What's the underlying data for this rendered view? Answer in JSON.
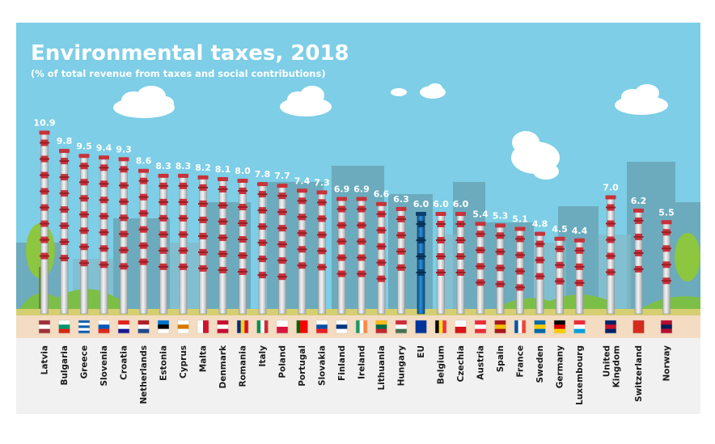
{
  "chart_data": {
    "type": "bar",
    "title": "Environmental taxes, 2018",
    "subtitle": "(% of total revenue from taxes and social contributions)",
    "ylim": [
      0,
      11
    ],
    "highlight": "EU",
    "categories": [
      {
        "label": [
          "Latvia"
        ],
        "value": "10.9"
      },
      {
        "label": [
          "Bulgaria"
        ],
        "value": "9.8"
      },
      {
        "label": [
          "Greece"
        ],
        "value": "9.5"
      },
      {
        "label": [
          "Slovenia"
        ],
        "value": "9.4"
      },
      {
        "label": [
          "Croatia"
        ],
        "value": "9.3"
      },
      {
        "label": [
          "Netherlands"
        ],
        "value": "8.6"
      },
      {
        "label": [
          "Estonia"
        ],
        "value": "8.3"
      },
      {
        "label": [
          "Cyprus"
        ],
        "value": "8.3"
      },
      {
        "label": [
          "Malta"
        ],
        "value": "8.2"
      },
      {
        "label": [
          "Denmark"
        ],
        "value": "8.1"
      },
      {
        "label": [
          "Romania"
        ],
        "value": "8.0"
      },
      {
        "label": [
          "Italy"
        ],
        "value": "7.8"
      },
      {
        "label": [
          "Poland"
        ],
        "value": "7.7"
      },
      {
        "label": [
          "Portugal"
        ],
        "value": "7.4"
      },
      {
        "label": [
          "Slovakia"
        ],
        "value": "7.3"
      },
      {
        "label": [
          "Finland"
        ],
        "value": "6.9"
      },
      {
        "label": [
          "Ireland"
        ],
        "value": "6.9"
      },
      {
        "label": [
          "Lithuania"
        ],
        "value": "6.6"
      },
      {
        "label": [
          "Hungary"
        ],
        "value": "6.3"
      },
      {
        "label": [
          "EU"
        ],
        "value": "6.0"
      },
      {
        "label": [
          "Belgium"
        ],
        "value": "6.0"
      },
      {
        "label": [
          "Czechia"
        ],
        "value": "6.0"
      },
      {
        "label": [
          "Austria"
        ],
        "value": "5.4"
      },
      {
        "label": [
          "Spain"
        ],
        "value": "5.3"
      },
      {
        "label": [
          "France"
        ],
        "value": "5.1"
      },
      {
        "label": [
          "Sweden"
        ],
        "value": "4.8"
      },
      {
        "label": [
          "Germany"
        ],
        "value": "4.5"
      },
      {
        "label": [
          "Luxembourg"
        ],
        "value": "4.4"
      },
      {
        "label": [
          "United",
          "Kingdom"
        ],
        "value": "7.0"
      },
      {
        "label": [
          "Switzerland"
        ],
        "value": "6.2"
      },
      {
        "label": [
          "Norway"
        ],
        "value": "5.5"
      }
    ]
  },
  "flags": [
    {
      "type": "h",
      "colors": [
        "#9e3039",
        "#ffffff",
        "#9e3039"
      ]
    },
    {
      "type": "h",
      "colors": [
        "#ffffff",
        "#00966e",
        "#d62612"
      ]
    },
    {
      "type": "h",
      "colors": [
        "#0d5eaf",
        "#ffffff",
        "#0d5eaf",
        "#ffffff",
        "#0d5eaf"
      ]
    },
    {
      "type": "h",
      "colors": [
        "#ffffff",
        "#0057b8",
        "#e2231a"
      ]
    },
    {
      "type": "h",
      "colors": [
        "#e2231a",
        "#ffffff",
        "#171796"
      ]
    },
    {
      "type": "h",
      "colors": [
        "#ae1c28",
        "#ffffff",
        "#21468b"
      ]
    },
    {
      "type": "h",
      "colors": [
        "#0072ce",
        "#000000",
        "#ffffff"
      ]
    },
    {
      "type": "h",
      "colors": [
        "#ffffff",
        "#d57800",
        "#ffffff"
      ]
    },
    {
      "type": "v",
      "colors": [
        "#ffffff",
        "#cf142b"
      ]
    },
    {
      "type": "h",
      "colors": [
        "#c60c30",
        "#ffffff",
        "#c60c30"
      ]
    },
    {
      "type": "v",
      "colors": [
        "#002b7f",
        "#fcd116",
        "#ce1126"
      ]
    },
    {
      "type": "v",
      "colors": [
        "#009246",
        "#ffffff",
        "#ce2b37"
      ]
    },
    {
      "type": "h",
      "colors": [
        "#ffffff",
        "#dc143c"
      ]
    },
    {
      "type": "v",
      "colors": [
        "#006600",
        "#ff0000",
        "#ff0000"
      ]
    },
    {
      "type": "h",
      "colors": [
        "#ffffff",
        "#0b4ea2",
        "#ee1c25"
      ]
    },
    {
      "type": "h",
      "colors": [
        "#ffffff",
        "#003580",
        "#ffffff"
      ]
    },
    {
      "type": "v",
      "colors": [
        "#169b62",
        "#ffffff",
        "#ff883e"
      ]
    },
    {
      "type": "h",
      "colors": [
        "#fdb913",
        "#006a44",
        "#c1272d"
      ]
    },
    {
      "type": "h",
      "colors": [
        "#ce2939",
        "#ffffff",
        "#477050"
      ]
    },
    {
      "type": "h",
      "colors": [
        "#003399"
      ]
    },
    {
      "type": "v",
      "colors": [
        "#000000",
        "#fdda24",
        "#ef3340"
      ]
    },
    {
      "type": "h",
      "colors": [
        "#ffffff",
        "#d7141a"
      ]
    },
    {
      "type": "h",
      "colors": [
        "#ed2939",
        "#ffffff",
        "#ed2939"
      ]
    },
    {
      "type": "h",
      "colors": [
        "#aa151b",
        "#f1bf00",
        "#aa151b"
      ]
    },
    {
      "type": "v",
      "colors": [
        "#0055a4",
        "#ffffff",
        "#ef4135"
      ]
    },
    {
      "type": "h",
      "colors": [
        "#006aa7",
        "#fecc00",
        "#006aa7"
      ]
    },
    {
      "type": "h",
      "colors": [
        "#000000",
        "#dd0000",
        "#ffce00"
      ]
    },
    {
      "type": "h",
      "colors": [
        "#ed2939",
        "#ffffff",
        "#00a1de"
      ]
    },
    {
      "type": "h",
      "colors": [
        "#012169",
        "#c8102e",
        "#012169"
      ]
    },
    {
      "type": "h",
      "colors": [
        "#d52b1e"
      ]
    },
    {
      "type": "h",
      "colors": [
        "#ba0c2f",
        "#00205b",
        "#ba0c2f"
      ]
    }
  ]
}
